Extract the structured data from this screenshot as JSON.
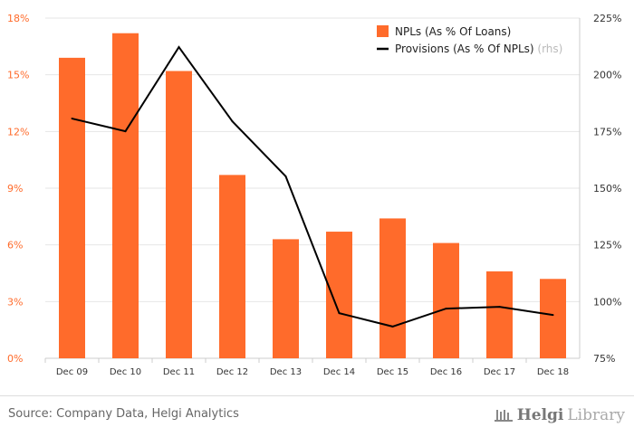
{
  "chart_data": {
    "type": "bar",
    "categories": [
      "Dec 09",
      "Dec 10",
      "Dec 11",
      "Dec 12",
      "Dec 13",
      "Dec 14",
      "Dec 15",
      "Dec 16",
      "Dec 17",
      "Dec 18"
    ],
    "series": [
      {
        "name": "NPLs (As % Of Loans)",
        "type": "bar",
        "axis": "left",
        "color": "#ff6b2b",
        "values": [
          15.9,
          17.2,
          15.2,
          9.7,
          6.3,
          6.7,
          7.4,
          6.1,
          4.6,
          4.2
        ]
      },
      {
        "name": "Provisions (As % Of NPLs)",
        "suffix": "(rhs)",
        "type": "line",
        "axis": "right",
        "color": "#000000",
        "values": [
          180.7,
          175.1,
          212.2,
          179.5,
          155.2,
          94.9,
          89.0,
          96.9,
          97.7,
          94.1
        ]
      }
    ],
    "left_axis": {
      "ylim": [
        0,
        18
      ],
      "ticks": [
        "0%",
        "3%",
        "6%",
        "9%",
        "12%",
        "15%",
        "18%"
      ],
      "color": "#ff6b2b"
    },
    "right_axis": {
      "ylim": [
        75,
        225
      ],
      "ticks": [
        "75%",
        "100%",
        "125%",
        "150%",
        "175%",
        "200%",
        "225%"
      ]
    },
    "legend": "top-right",
    "grid": true
  },
  "footer": {
    "source": "Source: Company Data, Helgi Analytics",
    "logo_bold": "Helgi",
    "logo_light": "Library"
  }
}
